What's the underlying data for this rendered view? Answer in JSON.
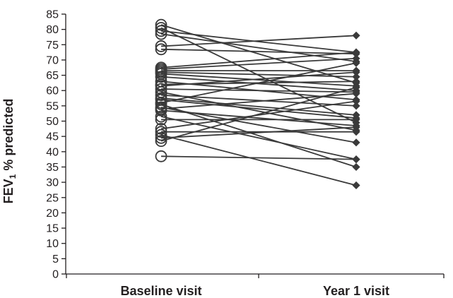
{
  "chart_data": {
    "type": "line",
    "categories": [
      "Baseline visit",
      "Year 1 visit"
    ],
    "ylabel_main": "FEV",
    "ylabel_sub": "1",
    "ylabel_rest": " % predicted",
    "ylim": [
      0,
      85
    ],
    "yticks": [
      0,
      5,
      10,
      15,
      20,
      25,
      30,
      35,
      40,
      45,
      50,
      55,
      60,
      65,
      70,
      75,
      80,
      85
    ],
    "grid": false,
    "line_color": "#3a3a3a",
    "baseline_marker": "open-circle",
    "year1_marker": "filled-diamond",
    "pairs": [
      [
        81.5,
        62.5
      ],
      [
        80.5,
        49.5
      ],
      [
        79.5,
        72.5
      ],
      [
        78.5,
        69.5
      ],
      [
        74.5,
        78.0
      ],
      [
        73.5,
        72.0
      ],
      [
        67.5,
        72.5
      ],
      [
        67.0,
        70.5
      ],
      [
        66.5,
        66.5
      ],
      [
        66.0,
        64.5
      ],
      [
        65.5,
        61.5
      ],
      [
        64.5,
        60.0
      ],
      [
        63.0,
        57.0
      ],
      [
        62.0,
        63.0
      ],
      [
        61.5,
        66.0
      ],
      [
        60.5,
        59.5
      ],
      [
        59.5,
        47.0
      ],
      [
        58.5,
        55.0
      ],
      [
        57.5,
        52.0
      ],
      [
        57.0,
        51.0
      ],
      [
        56.0,
        69.0
      ],
      [
        55.5,
        35.0
      ],
      [
        54.5,
        43.0
      ],
      [
        54.0,
        59.0
      ],
      [
        53.5,
        48.5
      ],
      [
        51.5,
        37.5
      ],
      [
        50.5,
        50.5
      ],
      [
        47.5,
        56.5
      ],
      [
        46.5,
        46.5
      ],
      [
        45.5,
        29.0
      ],
      [
        44.5,
        48.0
      ],
      [
        43.5,
        61.0
      ],
      [
        38.5,
        37.5
      ]
    ]
  }
}
